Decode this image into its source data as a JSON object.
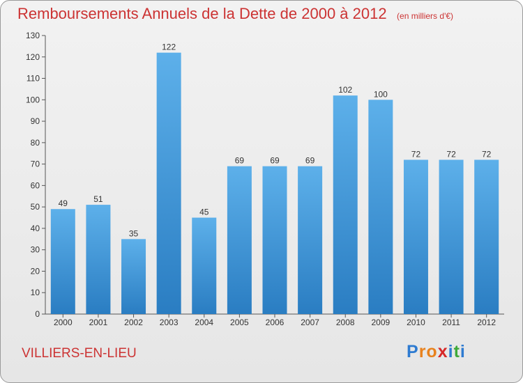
{
  "header": {
    "title": "Remboursements Annuels de la Dette de 2000 à 2012",
    "subtitle": "(en milliers d'€)"
  },
  "footer": {
    "place": "VILLIERS-EN-LIEU",
    "logo_letters": [
      "P",
      "r",
      "o",
      "x",
      "i",
      "t",
      "i"
    ],
    "logo_colors": [
      "#2e7bd1",
      "#e8821e",
      "#e8821e",
      "#d62828",
      "#2e7bd1",
      "#3fa93a",
      "#2e7bd1"
    ]
  },
  "colors": {
    "bar_top": "#5db0ea",
    "bar_bottom": "#2a7dc2",
    "title": "#cc3333"
  },
  "chart_data": {
    "type": "bar",
    "categories": [
      "2000",
      "2001",
      "2002",
      "2003",
      "2004",
      "2005",
      "2006",
      "2007",
      "2008",
      "2009",
      "2010",
      "2011",
      "2012"
    ],
    "values": [
      49,
      51,
      35,
      122,
      45,
      69,
      69,
      69,
      102,
      100,
      72,
      72,
      72
    ],
    "ylim": [
      0,
      130
    ],
    "yticks": [
      0,
      10,
      20,
      30,
      40,
      50,
      60,
      70,
      80,
      90,
      100,
      110,
      120,
      130
    ],
    "grid": false
  }
}
